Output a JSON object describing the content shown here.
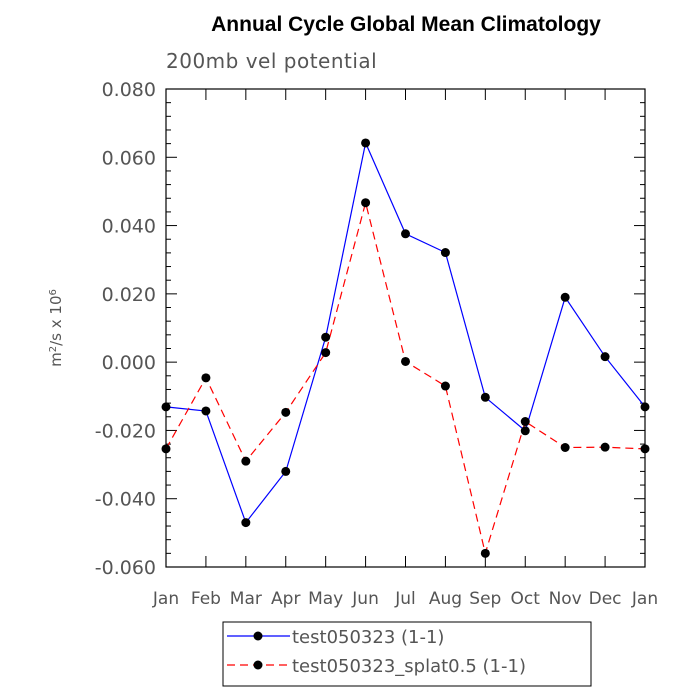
{
  "chart_data": {
    "type": "line",
    "title": "Annual Cycle Global Mean Climatology",
    "subtitle": "200mb vel potential",
    "ylabel_base": "m",
    "ylabel_sup1": "2",
    "ylabel_mid": "/s x 10",
    "ylabel_sup2": "6",
    "ylim": [
      -0.06,
      0.08
    ],
    "yticks": [
      -0.06,
      -0.04,
      -0.02,
      0.0,
      0.02,
      0.04,
      0.06,
      0.08
    ],
    "ytick_labels": [
      "-0.060",
      "-0.040",
      "-0.020",
      "0.000",
      "0.020",
      "0.040",
      "0.060",
      "0.080"
    ],
    "categories": [
      "Jan",
      "Feb",
      "Mar",
      "Apr",
      "May",
      "Jun",
      "Jul",
      "Aug",
      "Sep",
      "Oct",
      "Nov",
      "Dec",
      "Jan"
    ],
    "series": [
      {
        "name": "test050323 (1-1)",
        "color": "#0000ff",
        "dash": "solid",
        "values": [
          -0.0131,
          -0.0143,
          -0.047,
          -0.032,
          0.0073,
          0.0642,
          0.0376,
          0.0321,
          -0.0103,
          -0.0201,
          0.019,
          0.0016,
          -0.0131
        ]
      },
      {
        "name": "test050323_splat0.5 (1-1)",
        "color": "#ff0000",
        "dash": "dashed",
        "values": [
          -0.0254,
          -0.0046,
          -0.029,
          -0.0147,
          0.0028,
          0.0467,
          0.0002,
          -0.007,
          -0.056,
          -0.0174,
          -0.025,
          -0.0249,
          -0.0254
        ]
      }
    ],
    "grid": false,
    "legend_position": "bottom-center"
  }
}
